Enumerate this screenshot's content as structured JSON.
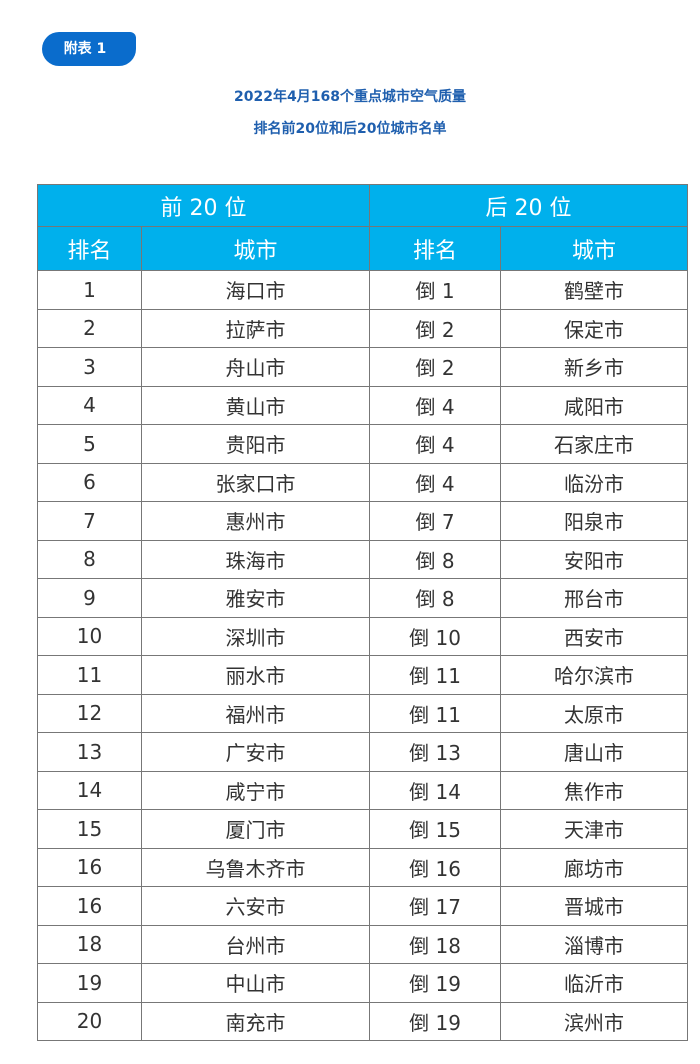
{
  "badge": "附表 1",
  "title_line1": "2022年4月168个重点城市空气质量",
  "title_line2": "排名前20位和后20位城市名单",
  "table": {
    "group_headers": [
      "前 20 位",
      "后 20 位"
    ],
    "column_headers": [
      "排名",
      "城市",
      "排名",
      "城市"
    ],
    "rows": [
      [
        "1",
        "海口市",
        "倒 1",
        "鹤壁市"
      ],
      [
        "2",
        "拉萨市",
        "倒 2",
        "保定市"
      ],
      [
        "3",
        "舟山市",
        "倒 2",
        "新乡市"
      ],
      [
        "4",
        "黄山市",
        "倒 4",
        "咸阳市"
      ],
      [
        "5",
        "贵阳市",
        "倒 4",
        "石家庄市"
      ],
      [
        "6",
        "张家口市",
        "倒 4",
        "临汾市"
      ],
      [
        "7",
        "惠州市",
        "倒 7",
        "阳泉市"
      ],
      [
        "8",
        "珠海市",
        "倒 8",
        "安阳市"
      ],
      [
        "9",
        "雅安市",
        "倒 8",
        "邢台市"
      ],
      [
        "10",
        "深圳市",
        "倒 10",
        "西安市"
      ],
      [
        "11",
        "丽水市",
        "倒 11",
        "哈尔滨市"
      ],
      [
        "12",
        "福州市",
        "倒 11",
        "太原市"
      ],
      [
        "13",
        "广安市",
        "倒 13",
        "唐山市"
      ],
      [
        "14",
        "咸宁市",
        "倒 14",
        "焦作市"
      ],
      [
        "15",
        "厦门市",
        "倒 15",
        "天津市"
      ],
      [
        "16",
        "乌鲁木齐市",
        "倒 16",
        "廊坊市"
      ],
      [
        "16",
        "六安市",
        "倒 17",
        "晋城市"
      ],
      [
        "18",
        "台州市",
        "倒 18",
        "淄博市"
      ],
      [
        "19",
        "中山市",
        "倒 19",
        "临沂市"
      ],
      [
        "20",
        "南充市",
        "倒 19",
        "滨州市"
      ]
    ]
  }
}
